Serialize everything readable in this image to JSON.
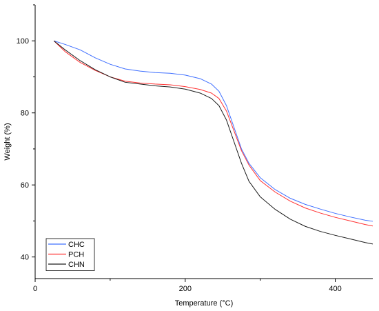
{
  "chart_data": {
    "type": "line",
    "title": "",
    "xlabel": "Temperature (°C)",
    "ylabel": "Weight (%)",
    "xlim": [
      0,
      450
    ],
    "ylim": [
      34,
      110
    ],
    "xticks": [
      0,
      200,
      400
    ],
    "yticks": [
      40,
      60,
      80,
      100
    ],
    "xtick_labels": [
      "0",
      "200",
      "400"
    ],
    "ytick_labels": [
      "40",
      "60",
      "80",
      "100"
    ],
    "grid": false,
    "legend_position": "bottom-left",
    "series": [
      {
        "name": "CHC",
        "color": "#3f6fff",
        "x": [
          25,
          40,
          60,
          80,
          100,
          120,
          140,
          160,
          180,
          200,
          220,
          235,
          245,
          255,
          265,
          275,
          285,
          300,
          320,
          340,
          360,
          380,
          400,
          420,
          440,
          450
        ],
        "y": [
          100,
          99,
          97.5,
          95.3,
          93.5,
          92.2,
          91.6,
          91.2,
          91.0,
          90.5,
          89.5,
          88,
          86,
          82,
          76,
          70,
          66,
          62,
          58.7,
          56.3,
          54.6,
          53.3,
          52.1,
          51.1,
          50.2,
          49.9
        ]
      },
      {
        "name": "PCH",
        "color": "#ff3030",
        "x": [
          25,
          40,
          60,
          80,
          100,
          120,
          140,
          160,
          180,
          200,
          220,
          235,
          245,
          255,
          265,
          275,
          285,
          300,
          320,
          340,
          360,
          380,
          400,
          420,
          440,
          450
        ],
        "y": [
          100,
          97,
          94,
          91.8,
          90,
          88.8,
          88.3,
          88,
          87.8,
          87.3,
          86.5,
          85.5,
          84,
          80.5,
          75,
          69.5,
          65.5,
          61.2,
          58,
          55.5,
          53.6,
          52.2,
          51,
          50,
          49,
          48.6
        ]
      },
      {
        "name": "CHN",
        "color": "#1a1a1a",
        "x": [
          25,
          40,
          60,
          80,
          100,
          120,
          140,
          160,
          180,
          200,
          220,
          235,
          245,
          255,
          265,
          275,
          285,
          300,
          320,
          340,
          360,
          380,
          400,
          420,
          440,
          450
        ],
        "y": [
          100,
          97.5,
          94.5,
          92,
          90,
          88.5,
          88,
          87.5,
          87.2,
          86.6,
          85.5,
          84,
          82,
          78,
          72,
          66,
          61,
          56.7,
          53.2,
          50.5,
          48.5,
          47.1,
          46,
          45,
          44,
          43.6
        ]
      }
    ]
  }
}
